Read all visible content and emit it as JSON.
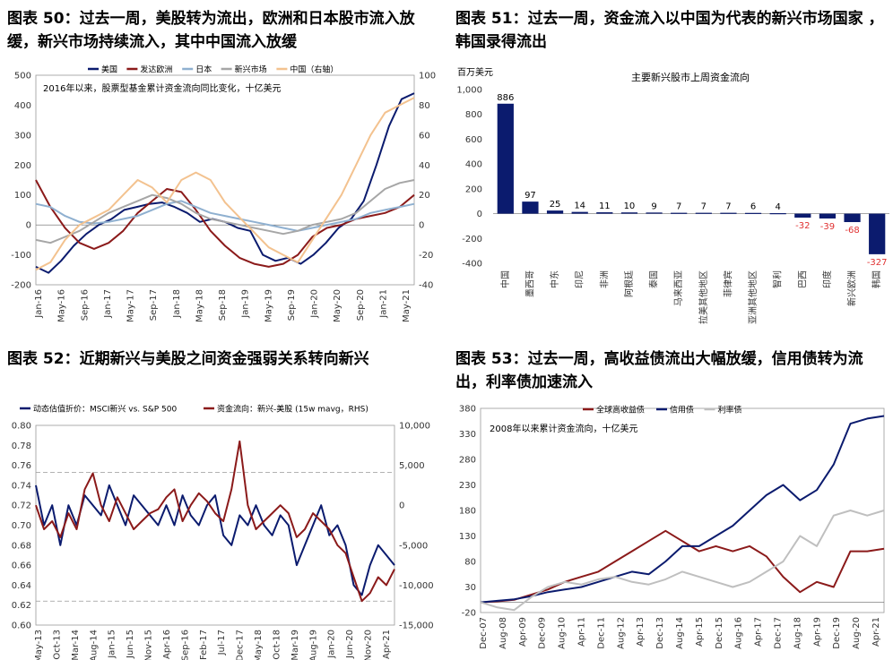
{
  "panels": {
    "p50": {
      "title": "图表 50：过去一周，美股转为流出，欧洲和日本股市流入放缓，新兴市场持续流入，其中中国流入放缓"
    },
    "p51": {
      "title": "图表 51：过去一周，资金流入以中国为代表的新兴市场国家 ，韩国录得流出"
    },
    "p52": {
      "title": "图表 52：近期新兴与美股之间资金强弱关系转向新兴"
    },
    "p53": {
      "title": "图表 53：过去一周，高收益债流出大幅放缓，信用债转为流出，利率债加速流入"
    }
  },
  "chart_data": [
    {
      "id": "fig50",
      "type": "line",
      "annotation": "2016年以来，股票型基金累计资金流向同比变化，十亿美元",
      "legend_position": "top",
      "ylim": [
        -200,
        500
      ],
      "y2lim": [
        -40,
        100
      ],
      "x_ticks": [
        "Jan-16",
        "May-16",
        "Sep-16",
        "Jan-17",
        "May-17",
        "Sep-17",
        "Jan-18",
        "May-18",
        "Sep-18",
        "Jan-19",
        "May-19",
        "Sep-19",
        "Jan-20",
        "May-20",
        "Sep-20",
        "Jan-21",
        "May-21"
      ],
      "y_ticks": [
        "500",
        "400",
        "300",
        "200",
        "100",
        "0",
        "-100",
        "-200"
      ],
      "y2_ticks": [
        "100",
        "80",
        "60",
        "40",
        "20",
        "0",
        "-20",
        "-40"
      ],
      "series": [
        {
          "name": "美国",
          "color": "#0b1b6e",
          "axis": "left",
          "values": [
            -140,
            -160,
            -120,
            -70,
            -30,
            0,
            20,
            50,
            60,
            70,
            75,
            60,
            40,
            10,
            20,
            10,
            -10,
            -20,
            -100,
            -120,
            -110,
            -130,
            -100,
            -60,
            -10,
            20,
            80,
            200,
            330,
            420,
            440
          ]
        },
        {
          "name": "发达欧洲",
          "color": "#8b1a1a",
          "axis": "left",
          "values": [
            150,
            60,
            -10,
            -60,
            -80,
            -60,
            -20,
            40,
            80,
            120,
            110,
            50,
            -20,
            -70,
            -110,
            -130,
            -140,
            -130,
            -100,
            -40,
            -10,
            0,
            20,
            30,
            40,
            60,
            100
          ]
        },
        {
          "name": "日本",
          "color": "#8fb0d0",
          "axis": "left",
          "values": [
            70,
            60,
            30,
            10,
            5,
            10,
            20,
            30,
            50,
            70,
            80,
            60,
            40,
            30,
            20,
            10,
            0,
            -10,
            -20,
            -10,
            0,
            10,
            20,
            40,
            50,
            60,
            70
          ]
        },
        {
          "name": "新兴市场",
          "color": "#a6a6a6",
          "axis": "left",
          "values": [
            -50,
            -60,
            -40,
            -20,
            10,
            40,
            60,
            80,
            100,
            90,
            70,
            40,
            20,
            10,
            0,
            -10,
            -20,
            -30,
            -20,
            0,
            10,
            20,
            40,
            80,
            120,
            140,
            150
          ]
        },
        {
          "name": "中国（右轴）",
          "color": "#f3c28f",
          "axis": "right",
          "values": [
            -30,
            -25,
            -10,
            0,
            5,
            10,
            20,
            30,
            25,
            15,
            30,
            35,
            30,
            15,
            5,
            -5,
            -15,
            -20,
            -25,
            -10,
            5,
            20,
            40,
            60,
            75,
            80,
            85
          ]
        }
      ]
    },
    {
      "id": "fig51",
      "type": "bar",
      "title": "主要新兴股市上周资金流向",
      "ylabel": "百万美元",
      "ylim": [
        -400,
        1000
      ],
      "y_ticks": [
        "1,000",
        "800",
        "600",
        "400",
        "200",
        "0",
        "-200",
        "-400"
      ],
      "categories": [
        "中国",
        "墨西哥",
        "中东",
        "印尼",
        "非洲",
        "阿根廷",
        "泰国",
        "马来西亚",
        "拉美其他地区",
        "菲律宾",
        "亚洲其他地区",
        "智利",
        "巴西",
        "印度",
        "新兴欧洲",
        "韩国"
      ],
      "values": [
        886,
        97,
        25,
        14,
        11,
        10,
        9,
        7,
        7,
        7,
        6,
        4,
        -32,
        -39,
        -68,
        -327
      ],
      "value_labels": [
        "886",
        "97",
        "25",
        "14",
        "11",
        "10",
        "9",
        "7",
        "7",
        "7",
        "6",
        "4",
        "-32",
        "-39",
        "-68",
        "-327"
      ],
      "bar_color": "#0b1b6e",
      "negative_label_color": "#e03030"
    },
    {
      "id": "fig52",
      "type": "line",
      "legend_position": "top",
      "ylim": [
        0.6,
        0.8
      ],
      "y2lim": [
        -15000,
        10000
      ],
      "x_ticks": [
        "May-13",
        "Oct-13",
        "Mar-14",
        "Aug-14",
        "Jan-15",
        "Jun-15",
        "Nov-15",
        "Apr-16",
        "Sep-16",
        "Feb-17",
        "Jul-17",
        "Dec-17",
        "May-18",
        "Oct-18",
        "Mar-19",
        "Aug-19",
        "Jan-20",
        "Jun-20",
        "Nov-20",
        "Apr-21"
      ],
      "y_ticks": [
        "0.80",
        "0.78",
        "0.76",
        "0.74",
        "0.72",
        "0.70",
        "0.68",
        "0.66",
        "0.64",
        "0.62",
        "0.60"
      ],
      "y2_ticks": [
        "10,000",
        "5,000",
        "0",
        "-5,000",
        "-10,000",
        "-15,000"
      ],
      "reference_lines_left": [
        0.753,
        0.624
      ],
      "series": [
        {
          "name": "动态估值折价：MSCI新兴 vs. S&P 500",
          "color": "#0b1b6e",
          "axis": "left",
          "values": [
            0.74,
            0.7,
            0.72,
            0.68,
            0.72,
            0.7,
            0.73,
            0.72,
            0.71,
            0.74,
            0.72,
            0.7,
            0.73,
            0.72,
            0.71,
            0.7,
            0.72,
            0.7,
            0.73,
            0.71,
            0.7,
            0.72,
            0.73,
            0.69,
            0.68,
            0.71,
            0.7,
            0.72,
            0.7,
            0.69,
            0.71,
            0.7,
            0.66,
            0.68,
            0.7,
            0.72,
            0.69,
            0.7,
            0.68,
            0.64,
            0.63,
            0.66,
            0.68,
            0.67,
            0.66
          ]
        },
        {
          "name": "资金流向：新兴-美股 (15w mavg，RHS)",
          "color": "#8b1a1a",
          "axis": "right",
          "values": [
            0,
            -3000,
            -2000,
            -4000,
            -1000,
            -3000,
            2000,
            4000,
            0,
            -2000,
            1000,
            -1000,
            -3000,
            -2000,
            -1000,
            -500,
            1000,
            2000,
            -2000,
            0,
            1500,
            500,
            -1000,
            -2000,
            2000,
            8000,
            0,
            -3000,
            -2000,
            -1000,
            0,
            -1000,
            -4000,
            -3000,
            -1000,
            -2000,
            -3000,
            -5000,
            -6000,
            -9000,
            -12000,
            -11000,
            -9000,
            -10000,
            -8000
          ]
        }
      ]
    },
    {
      "id": "fig53",
      "type": "line",
      "annotation": "2008年以来累计资金流向，十亿美元",
      "legend_position": "top",
      "ylim": [
        -20,
        380
      ],
      "x_ticks": [
        "Dec-07",
        "Aug-08",
        "Apr-09",
        "Dec-09",
        "Aug-10",
        "Apr-11",
        "Dec-11",
        "Aug-12",
        "Apr-13",
        "Dec-13",
        "Aug-14",
        "Apr-15",
        "Dec-15",
        "Aug-16",
        "Apr-17",
        "Dec-17",
        "Aug-18",
        "Apr-19",
        "Dec-19",
        "Aug-20",
        "Apr-21"
      ],
      "y_ticks": [
        "380",
        "330",
        "280",
        "230",
        "180",
        "130",
        "80",
        "30",
        "-20"
      ],
      "series": [
        {
          "name": "全球高收益债",
          "color": "#8b1a1a",
          "values": [
            0,
            2,
            5,
            15,
            25,
            40,
            50,
            60,
            80,
            100,
            120,
            140,
            120,
            100,
            110,
            100,
            110,
            90,
            50,
            20,
            40,
            30,
            100,
            100,
            105
          ]
        },
        {
          "name": "信用债",
          "color": "#0b1b6e",
          "values": [
            0,
            3,
            6,
            12,
            20,
            25,
            30,
            40,
            50,
            60,
            55,
            80,
            110,
            110,
            130,
            150,
            180,
            210,
            230,
            200,
            220,
            270,
            350,
            360,
            365
          ]
        },
        {
          "name": "利率债",
          "color": "#bfbfbf",
          "values": [
            0,
            -10,
            -15,
            10,
            30,
            40,
            35,
            45,
            50,
            40,
            35,
            45,
            60,
            50,
            40,
            30,
            40,
            60,
            80,
            130,
            110,
            170,
            180,
            170,
            180
          ]
        }
      ]
    }
  ]
}
